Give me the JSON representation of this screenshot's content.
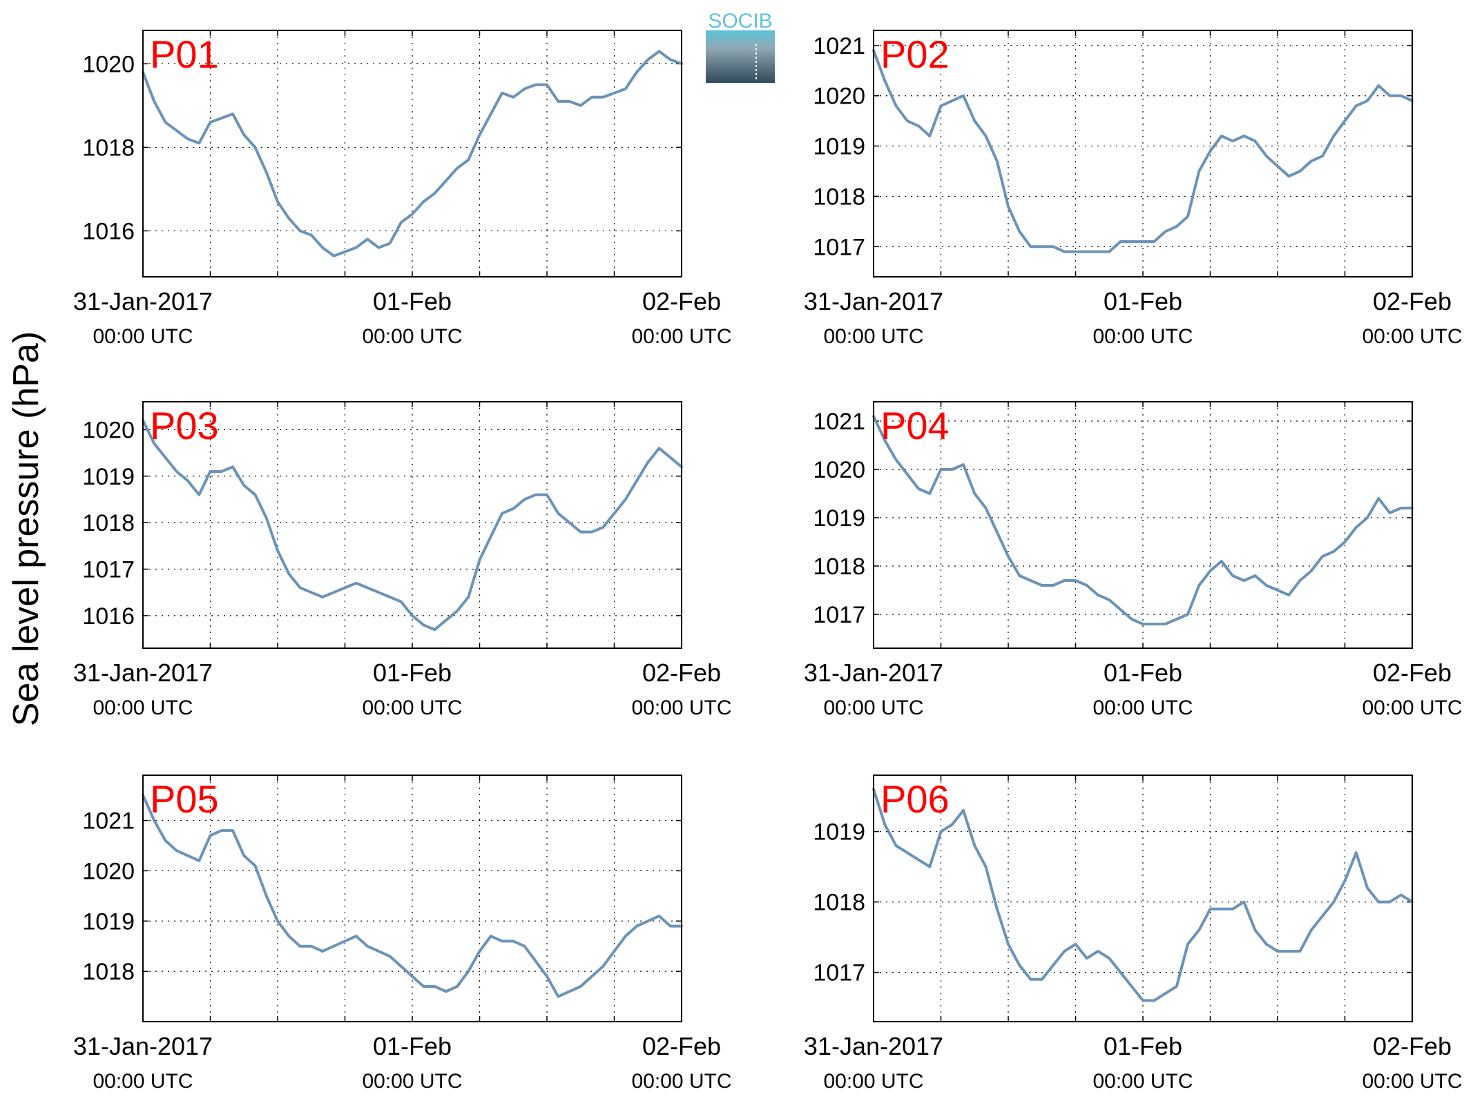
{
  "figure": {
    "ylabel": "Sea level pressure (hPa)",
    "logo_text": "SOCIB",
    "line_color": "#6b93b8",
    "title_color": "#ff0000"
  },
  "chart_data": [
    {
      "type": "line",
      "title": "P01",
      "x_range": [
        "2017-01-31T00:00Z",
        "2017-02-02T00:00Z"
      ],
      "x_tick_labels": [
        {
          "date": "31-Jan-2017",
          "time": "00:00 UTC"
        },
        {
          "date": "01-Feb",
          "time": "00:00 UTC"
        },
        {
          "date": "02-Feb",
          "time": "00:00 UTC"
        }
      ],
      "ylim": [
        1014.9,
        1020.8
      ],
      "yticks": [
        1016,
        1018,
        1020
      ],
      "grid": true,
      "x_hours": [
        0,
        1,
        2,
        3,
        4,
        5,
        6,
        7,
        8,
        9,
        10,
        11,
        12,
        13,
        14,
        15,
        16,
        17,
        18,
        19,
        20,
        21,
        22,
        23,
        24,
        25,
        26,
        27,
        28,
        29,
        30,
        31,
        32,
        33,
        34,
        35,
        36,
        37,
        38,
        39,
        40,
        41,
        42,
        43,
        44,
        45,
        46,
        47,
        48
      ],
      "values": [
        1019.8,
        1019.1,
        1018.6,
        1018.4,
        1018.2,
        1018.1,
        1018.6,
        1018.7,
        1018.8,
        1018.3,
        1018.0,
        1017.4,
        1016.7,
        1016.3,
        1016.0,
        1015.9,
        1015.6,
        1015.4,
        1015.5,
        1015.6,
        1015.8,
        1015.6,
        1015.7,
        1016.2,
        1016.4,
        1016.7,
        1016.9,
        1017.2,
        1017.5,
        1017.7,
        1018.3,
        1018.8,
        1019.3,
        1019.2,
        1019.4,
        1019.5,
        1019.5,
        1019.1,
        1019.1,
        1019.0,
        1019.2,
        1019.2,
        1019.3,
        1019.4,
        1019.8,
        1020.1,
        1020.3,
        1020.1,
        1020.0
      ]
    },
    {
      "type": "line",
      "title": "P02",
      "x_range": [
        "2017-01-31T00:00Z",
        "2017-02-02T00:00Z"
      ],
      "x_tick_labels": [
        {
          "date": "31-Jan-2017",
          "time": "00:00 UTC"
        },
        {
          "date": "01-Feb",
          "time": "00:00 UTC"
        },
        {
          "date": "02-Feb",
          "time": "00:00 UTC"
        }
      ],
      "ylim": [
        1016.4,
        1021.3
      ],
      "yticks": [
        1017,
        1018,
        1019,
        1020,
        1021
      ],
      "grid": true,
      "x_hours": [
        0,
        1,
        2,
        3,
        4,
        5,
        6,
        7,
        8,
        9,
        10,
        11,
        12,
        13,
        14,
        15,
        16,
        17,
        18,
        19,
        20,
        21,
        22,
        23,
        24,
        25,
        26,
        27,
        28,
        29,
        30,
        31,
        32,
        33,
        34,
        35,
        36,
        37,
        38,
        39,
        40,
        41,
        42,
        43,
        44,
        45,
        46,
        47,
        48
      ],
      "values": [
        1020.9,
        1020.3,
        1019.8,
        1019.5,
        1019.4,
        1019.2,
        1019.8,
        1019.9,
        1020.0,
        1019.5,
        1019.2,
        1018.7,
        1017.8,
        1017.3,
        1017.0,
        1017.0,
        1017.0,
        1016.9,
        1016.9,
        1016.9,
        1016.9,
        1016.9,
        1017.1,
        1017.1,
        1017.1,
        1017.1,
        1017.3,
        1017.4,
        1017.6,
        1018.5,
        1018.9,
        1019.2,
        1019.1,
        1019.2,
        1019.1,
        1018.8,
        1018.6,
        1018.4,
        1018.5,
        1018.7,
        1018.8,
        1019.2,
        1019.5,
        1019.8,
        1019.9,
        1020.2,
        1020.0,
        1020.0,
        1019.9
      ]
    },
    {
      "type": "line",
      "title": "P03",
      "x_range": [
        "2017-01-31T00:00Z",
        "2017-02-02T00:00Z"
      ],
      "x_tick_labels": [
        {
          "date": "31-Jan-2017",
          "time": "00:00 UTC"
        },
        {
          "date": "01-Feb",
          "time": "00:00 UTC"
        },
        {
          "date": "02-Feb",
          "time": "00:00 UTC"
        }
      ],
      "ylim": [
        1015.3,
        1020.6
      ],
      "yticks": [
        1016,
        1017,
        1018,
        1019,
        1020
      ],
      "grid": true,
      "x_hours": [
        0,
        1,
        2,
        3,
        4,
        5,
        6,
        7,
        8,
        9,
        10,
        11,
        12,
        13,
        14,
        15,
        16,
        17,
        18,
        19,
        20,
        21,
        22,
        23,
        24,
        25,
        26,
        27,
        28,
        29,
        30,
        31,
        32,
        33,
        34,
        35,
        36,
        37,
        38,
        39,
        40,
        41,
        42,
        43,
        44,
        45,
        46,
        47,
        48
      ],
      "values": [
        1020.2,
        1019.7,
        1019.4,
        1019.1,
        1018.9,
        1018.6,
        1019.1,
        1019.1,
        1019.2,
        1018.8,
        1018.6,
        1018.1,
        1017.4,
        1016.9,
        1016.6,
        1016.5,
        1016.4,
        1016.5,
        1016.6,
        1016.7,
        1016.6,
        1016.5,
        1016.4,
        1016.3,
        1016.0,
        1015.8,
        1015.7,
        1015.9,
        1016.1,
        1016.4,
        1017.2,
        1017.7,
        1018.2,
        1018.3,
        1018.5,
        1018.6,
        1018.6,
        1018.2,
        1018.0,
        1017.8,
        1017.8,
        1017.9,
        1018.2,
        1018.5,
        1018.9,
        1019.3,
        1019.6,
        1019.4,
        1019.2
      ]
    },
    {
      "type": "line",
      "title": "P04",
      "x_range": [
        "2017-01-31T00:00Z",
        "2017-02-02T00:00Z"
      ],
      "x_tick_labels": [
        {
          "date": "31-Jan-2017",
          "time": "00:00 UTC"
        },
        {
          "date": "01-Feb",
          "time": "00:00 UTC"
        },
        {
          "date": "02-Feb",
          "time": "00:00 UTC"
        }
      ],
      "ylim": [
        1016.3,
        1021.4
      ],
      "yticks": [
        1017,
        1018,
        1019,
        1020,
        1021
      ],
      "grid": true,
      "x_hours": [
        0,
        1,
        2,
        3,
        4,
        5,
        6,
        7,
        8,
        9,
        10,
        11,
        12,
        13,
        14,
        15,
        16,
        17,
        18,
        19,
        20,
        21,
        22,
        23,
        24,
        25,
        26,
        27,
        28,
        29,
        30,
        31,
        32,
        33,
        34,
        35,
        36,
        37,
        38,
        39,
        40,
        41,
        42,
        43,
        44,
        45,
        46,
        47,
        48
      ],
      "values": [
        1021.1,
        1020.6,
        1020.2,
        1019.9,
        1019.6,
        1019.5,
        1020.0,
        1020.0,
        1020.1,
        1019.5,
        1019.2,
        1018.7,
        1018.2,
        1017.8,
        1017.7,
        1017.6,
        1017.6,
        1017.7,
        1017.7,
        1017.6,
        1017.4,
        1017.3,
        1017.1,
        1016.9,
        1016.8,
        1016.8,
        1016.8,
        1016.9,
        1017.0,
        1017.6,
        1017.9,
        1018.1,
        1017.8,
        1017.7,
        1017.8,
        1017.6,
        1017.5,
        1017.4,
        1017.7,
        1017.9,
        1018.2,
        1018.3,
        1018.5,
        1018.8,
        1019.0,
        1019.4,
        1019.1,
        1019.2,
        1019.2
      ]
    },
    {
      "type": "line",
      "title": "P05",
      "x_range": [
        "2017-01-31T00:00Z",
        "2017-02-02T00:00Z"
      ],
      "x_tick_labels": [
        {
          "date": "31-Jan-2017",
          "time": "00:00 UTC"
        },
        {
          "date": "01-Feb",
          "time": "00:00 UTC"
        },
        {
          "date": "02-Feb",
          "time": "00:00 UTC"
        }
      ],
      "ylim": [
        1017.0,
        1021.9
      ],
      "yticks": [
        1018,
        1019,
        1020,
        1021
      ],
      "grid": true,
      "x_hours": [
        0,
        1,
        2,
        3,
        4,
        5,
        6,
        7,
        8,
        9,
        10,
        11,
        12,
        13,
        14,
        15,
        16,
        17,
        18,
        19,
        20,
        21,
        22,
        23,
        24,
        25,
        26,
        27,
        28,
        29,
        30,
        31,
        32,
        33,
        34,
        35,
        36,
        37,
        38,
        39,
        40,
        41,
        42,
        43,
        44,
        45,
        46,
        47,
        48
      ],
      "values": [
        1021.5,
        1021.0,
        1020.6,
        1020.4,
        1020.3,
        1020.2,
        1020.7,
        1020.8,
        1020.8,
        1020.3,
        1020.1,
        1019.5,
        1019.0,
        1018.7,
        1018.5,
        1018.5,
        1018.4,
        1018.5,
        1018.6,
        1018.7,
        1018.5,
        1018.4,
        1018.3,
        1018.1,
        1017.9,
        1017.7,
        1017.7,
        1017.6,
        1017.7,
        1018.0,
        1018.4,
        1018.7,
        1018.6,
        1018.6,
        1018.5,
        1018.2,
        1017.9,
        1017.5,
        1017.6,
        1017.7,
        1017.9,
        1018.1,
        1018.4,
        1018.7,
        1018.9,
        1019.0,
        1019.1,
        1018.9,
        1018.9
      ]
    },
    {
      "type": "line",
      "title": "P06",
      "x_range": [
        "2017-01-31T00:00Z",
        "2017-02-02T00:00Z"
      ],
      "x_tick_labels": [
        {
          "date": "31-Jan-2017",
          "time": "00:00 UTC"
        },
        {
          "date": "01-Feb",
          "time": "00:00 UTC"
        },
        {
          "date": "02-Feb",
          "time": "00:00 UTC"
        }
      ],
      "ylim": [
        1016.3,
        1019.8
      ],
      "yticks": [
        1017,
        1018,
        1019
      ],
      "grid": true,
      "x_hours": [
        0,
        1,
        2,
        3,
        4,
        5,
        6,
        7,
        8,
        9,
        10,
        11,
        12,
        13,
        14,
        15,
        16,
        17,
        18,
        19,
        20,
        21,
        22,
        23,
        24,
        25,
        26,
        27,
        28,
        29,
        30,
        31,
        32,
        33,
        34,
        35,
        36,
        37,
        38,
        39,
        40,
        41,
        42,
        43,
        44,
        45,
        46,
        47,
        48
      ],
      "values": [
        1019.6,
        1019.1,
        1018.8,
        1018.7,
        1018.6,
        1018.5,
        1019.0,
        1019.1,
        1019.3,
        1018.8,
        1018.5,
        1017.9,
        1017.4,
        1017.1,
        1016.9,
        1016.9,
        1017.1,
        1017.3,
        1017.4,
        1017.2,
        1017.3,
        1017.2,
        1017.0,
        1016.8,
        1016.6,
        1016.6,
        1016.7,
        1016.8,
        1017.4,
        1017.6,
        1017.9,
        1017.9,
        1017.9,
        1018.0,
        1017.6,
        1017.4,
        1017.3,
        1017.3,
        1017.3,
        1017.6,
        1017.8,
        1018.0,
        1018.3,
        1018.7,
        1018.2,
        1018.0,
        1018.0,
        1018.1,
        1018.0
      ]
    }
  ]
}
